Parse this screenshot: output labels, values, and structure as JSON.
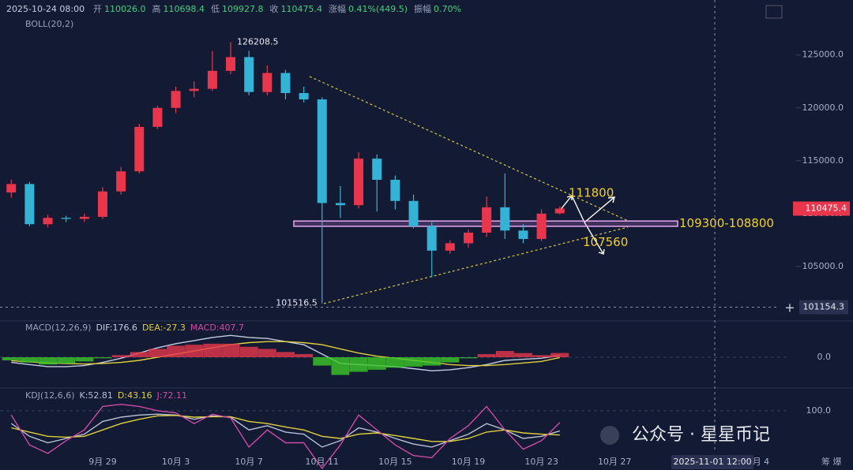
{
  "chart_data": {
    "type": "candlestick",
    "timestamp": "2025-10-24 08:00",
    "info": [
      {
        "k": "开",
        "v": "110026.0"
      },
      {
        "k": "高",
        "v": "110698.4"
      },
      {
        "k": "低",
        "v": "109927.8"
      },
      {
        "k": "收",
        "v": "110475.4"
      },
      {
        "k": "涨幅",
        "v": "0.41%(449.5)"
      },
      {
        "k": "振幅",
        "v": "0.70%"
      }
    ],
    "indicator": "BOLL(20,2)",
    "categories": [
      null,
      null,
      null,
      null,
      null,
      "9月 29",
      null,
      null,
      null,
      "10月 3",
      null,
      null,
      null,
      "10月 7",
      null,
      null,
      null,
      "10月 11",
      null,
      null,
      null,
      "10月 15",
      null,
      null,
      null,
      "10月 19",
      null,
      null,
      null,
      "10月 23",
      null,
      null,
      null,
      "10月 27",
      null,
      null,
      null,
      null,
      null,
      null,
      null,
      "月 4"
    ],
    "open": [
      112000,
      112800,
      109000,
      109600,
      109500,
      109700,
      112100,
      114000,
      118200,
      120000,
      121600,
      121800,
      123500,
      124800,
      121500,
      123300,
      121400,
      120800,
      111000,
      110800,
      115200,
      113200,
      111200,
      108800,
      106500,
      107200,
      108200,
      110600,
      108400,
      107600,
      110026,
      null,
      null,
      null,
      null,
      null,
      null,
      null,
      null,
      null,
      null,
      null
    ],
    "high": [
      113200,
      113000,
      109900,
      109800,
      110000,
      112500,
      114400,
      118500,
      120200,
      122000,
      122500,
      125400,
      126208.5,
      125400,
      124000,
      123600,
      122000,
      121000,
      112600,
      115800,
      115600,
      113600,
      111800,
      109200,
      107500,
      108500,
      111600,
      113800,
      109000,
      110400,
      110698.4,
      null,
      null,
      null,
      null,
      null,
      null,
      null,
      null,
      null,
      null,
      null
    ],
    "low": [
      111500,
      108800,
      108700,
      109200,
      109200,
      109500,
      111800,
      113800,
      118000,
      119500,
      121000,
      121600,
      123200,
      121200,
      121200,
      120800,
      120500,
      101516.5,
      109600,
      110500,
      110200,
      110400,
      108600,
      104000,
      106200,
      106800,
      107800,
      107600,
      107200,
      107400,
      109927.8,
      null,
      null,
      null,
      null,
      null,
      null,
      null,
      null,
      null,
      null,
      null
    ],
    "close": [
      112800,
      109000,
      109600,
      109500,
      109700,
      112100,
      114000,
      118200,
      120000,
      121600,
      121800,
      123500,
      124800,
      121500,
      123300,
      121400,
      120800,
      111000,
      110800,
      115200,
      113200,
      111200,
      108800,
      106500,
      107200,
      108200,
      110600,
      108400,
      107600,
      110000,
      110475.4,
      null,
      null,
      null,
      null,
      null,
      null,
      null,
      null,
      null,
      null,
      null
    ],
    "up_color": "#e8374c",
    "down_color": "#35b3d6",
    "ylim": [
      100000,
      130200
    ],
    "yticks": [
      {
        "value": 105000,
        "label": "105000.0"
      },
      {
        "value": 110000,
        "label": "110000.0"
      },
      {
        "value": 115000,
        "label": "115000.0"
      },
      {
        "value": 120000,
        "label": "120000.0"
      },
      {
        "value": 125000,
        "label": "125000.0"
      }
    ],
    "zone": [
      108800,
      109300
    ],
    "zone_label": "109300-108800",
    "targets": [
      111800,
      107560
    ],
    "crosshair": {
      "x_label": "2025-11-01 12:00",
      "y": 101154.3
    },
    "macd": {
      "title": "MACD(12,26,9)",
      "ylim": [
        -2800,
        2800
      ],
      "yticks": [
        {
          "value": 0,
          "label": "0.0"
        }
      ],
      "series": [
        {
          "name": "DIF:176.6",
          "color": "#c4cbe0",
          "values": [
            -500,
            -700,
            -900,
            -900,
            -800,
            -500,
            -100,
            400,
            900,
            1300,
            1600,
            1900,
            2100,
            1900,
            1800,
            1500,
            1200,
            300,
            -600,
            -700,
            -800,
            -900,
            -1100,
            -1300,
            -1200,
            -1000,
            -700,
            -300,
            -200,
            -100,
            176.6,
            null,
            null,
            null,
            null,
            null,
            null,
            null,
            null,
            null,
            null,
            null
          ]
        },
        {
          "name": "DEA:-27.3",
          "color": "#e0cf3c",
          "values": [
            -350,
            -450,
            -550,
            -600,
            -650,
            -600,
            -500,
            -300,
            0,
            300,
            600,
            900,
            1200,
            1400,
            1500,
            1500,
            1400,
            1200,
            800,
            400,
            100,
            -100,
            -300,
            -500,
            -700,
            -800,
            -800,
            -700,
            -550,
            -400,
            -27.3,
            null,
            null,
            null,
            null,
            null,
            null,
            null,
            null,
            null,
            null,
            null
          ]
        },
        {
          "name": "MACD:407.7",
          "color": "#e0cf3c",
          "values": [
            -300,
            -500,
            -700,
            -600,
            -400,
            -100,
            200,
            500,
            800,
            1100,
            1200,
            1300,
            1300,
            1000,
            800,
            500,
            300,
            -800,
            -1700,
            -1400,
            -1200,
            -1000,
            -900,
            -800,
            -500,
            -100,
            300,
            600,
            400,
            200,
            407.7,
            null,
            null,
            null,
            null,
            null,
            null,
            null,
            null,
            null,
            null,
            null
          ]
        }
      ]
    },
    "kdj": {
      "title": "KDJ(12,6,6)",
      "ylim": [
        0,
        120
      ],
      "yticks": [
        {
          "value": 100,
          "label": "100.0"
        }
      ],
      "series": [
        {
          "name": "K:52.81",
          "color": "#b9bfd6",
          "values": [
            70,
            40,
            25,
            35,
            45,
            75,
            85,
            90,
            92,
            90,
            80,
            88,
            85,
            55,
            65,
            50,
            45,
            15,
            30,
            60,
            50,
            35,
            22,
            15,
            30,
            45,
            70,
            55,
            35,
            40,
            52.81,
            null,
            null,
            null,
            null,
            null,
            null,
            null,
            null,
            null,
            null,
            null
          ]
        },
        {
          "name": "D:43.16",
          "color": "#e0cf3c",
          "values": [
            60,
            50,
            40,
            38,
            40,
            55,
            70,
            80,
            88,
            89,
            85,
            86,
            86,
            75,
            70,
            62,
            55,
            40,
            35,
            45,
            48,
            42,
            35,
            28,
            28,
            35,
            50,
            55,
            48,
            45,
            43.16,
            null,
            null,
            null,
            null,
            null,
            null,
            null,
            null,
            null,
            null,
            null
          ]
        },
        {
          "name": "J:72.11",
          "color": "#cf4aa6",
          "values": [
            90,
            20,
            0,
            30,
            55,
            110,
            115,
            110,
            100,
            95,
            70,
            92,
            83,
            15,
            55,
            25,
            25,
            -35,
            20,
            90,
            55,
            20,
            -5,
            -10,
            35,
            65,
            110,
            55,
            10,
            30,
            72.11,
            null,
            null,
            null,
            null,
            null,
            null,
            null,
            null,
            null,
            null,
            null
          ]
        }
      ]
    },
    "watermark": "公众号 · 星星币记",
    "corner_text": "筹 爆"
  }
}
